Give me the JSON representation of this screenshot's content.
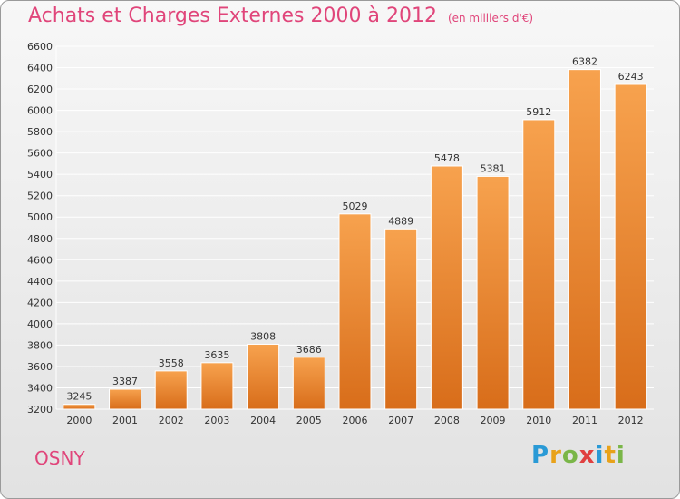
{
  "header": {
    "title": "Achats et Charges Externes 2000 à 2012",
    "subtitle": "(en milliers d'€)"
  },
  "footer": {
    "city": "OSNY",
    "logo": {
      "text": "Proxiti",
      "letters": [
        {
          "char": "P",
          "color": "#2a9ad6"
        },
        {
          "char": "r",
          "color": "#e8a21a"
        },
        {
          "char": "o",
          "color": "#7ab648"
        },
        {
          "char": "x",
          "color": "#e04040"
        },
        {
          "char": "i",
          "color": "#2a9ad6"
        },
        {
          "char": "t",
          "color": "#e8a21a"
        },
        {
          "char": "i",
          "color": "#7ab648"
        }
      ]
    }
  },
  "colors": {
    "title": "#e0457a",
    "bar_top": "#f7a24e",
    "bar_bottom": "#d86d1a",
    "grid": "#ffffff",
    "axis_text": "#333333"
  },
  "chart_data": {
    "type": "bar",
    "title": "Achats et Charges Externes 2000 à 2012",
    "subtitle": "(en milliers d'€)",
    "categories": [
      "2000",
      "2001",
      "2002",
      "2003",
      "2004",
      "2005",
      "2006",
      "2007",
      "2008",
      "2009",
      "2010",
      "2011",
      "2012"
    ],
    "values": [
      3245,
      3387,
      3558,
      3635,
      3808,
      3686,
      5029,
      4889,
      5478,
      5381,
      5912,
      6382,
      6243
    ],
    "ylim": [
      3200,
      6600
    ],
    "yticks": [
      3200,
      3400,
      3600,
      3800,
      4000,
      4200,
      4400,
      4600,
      4800,
      5000,
      5200,
      5400,
      5600,
      5800,
      6000,
      6200,
      6400,
      6600
    ],
    "grid": true,
    "legend": "none"
  }
}
